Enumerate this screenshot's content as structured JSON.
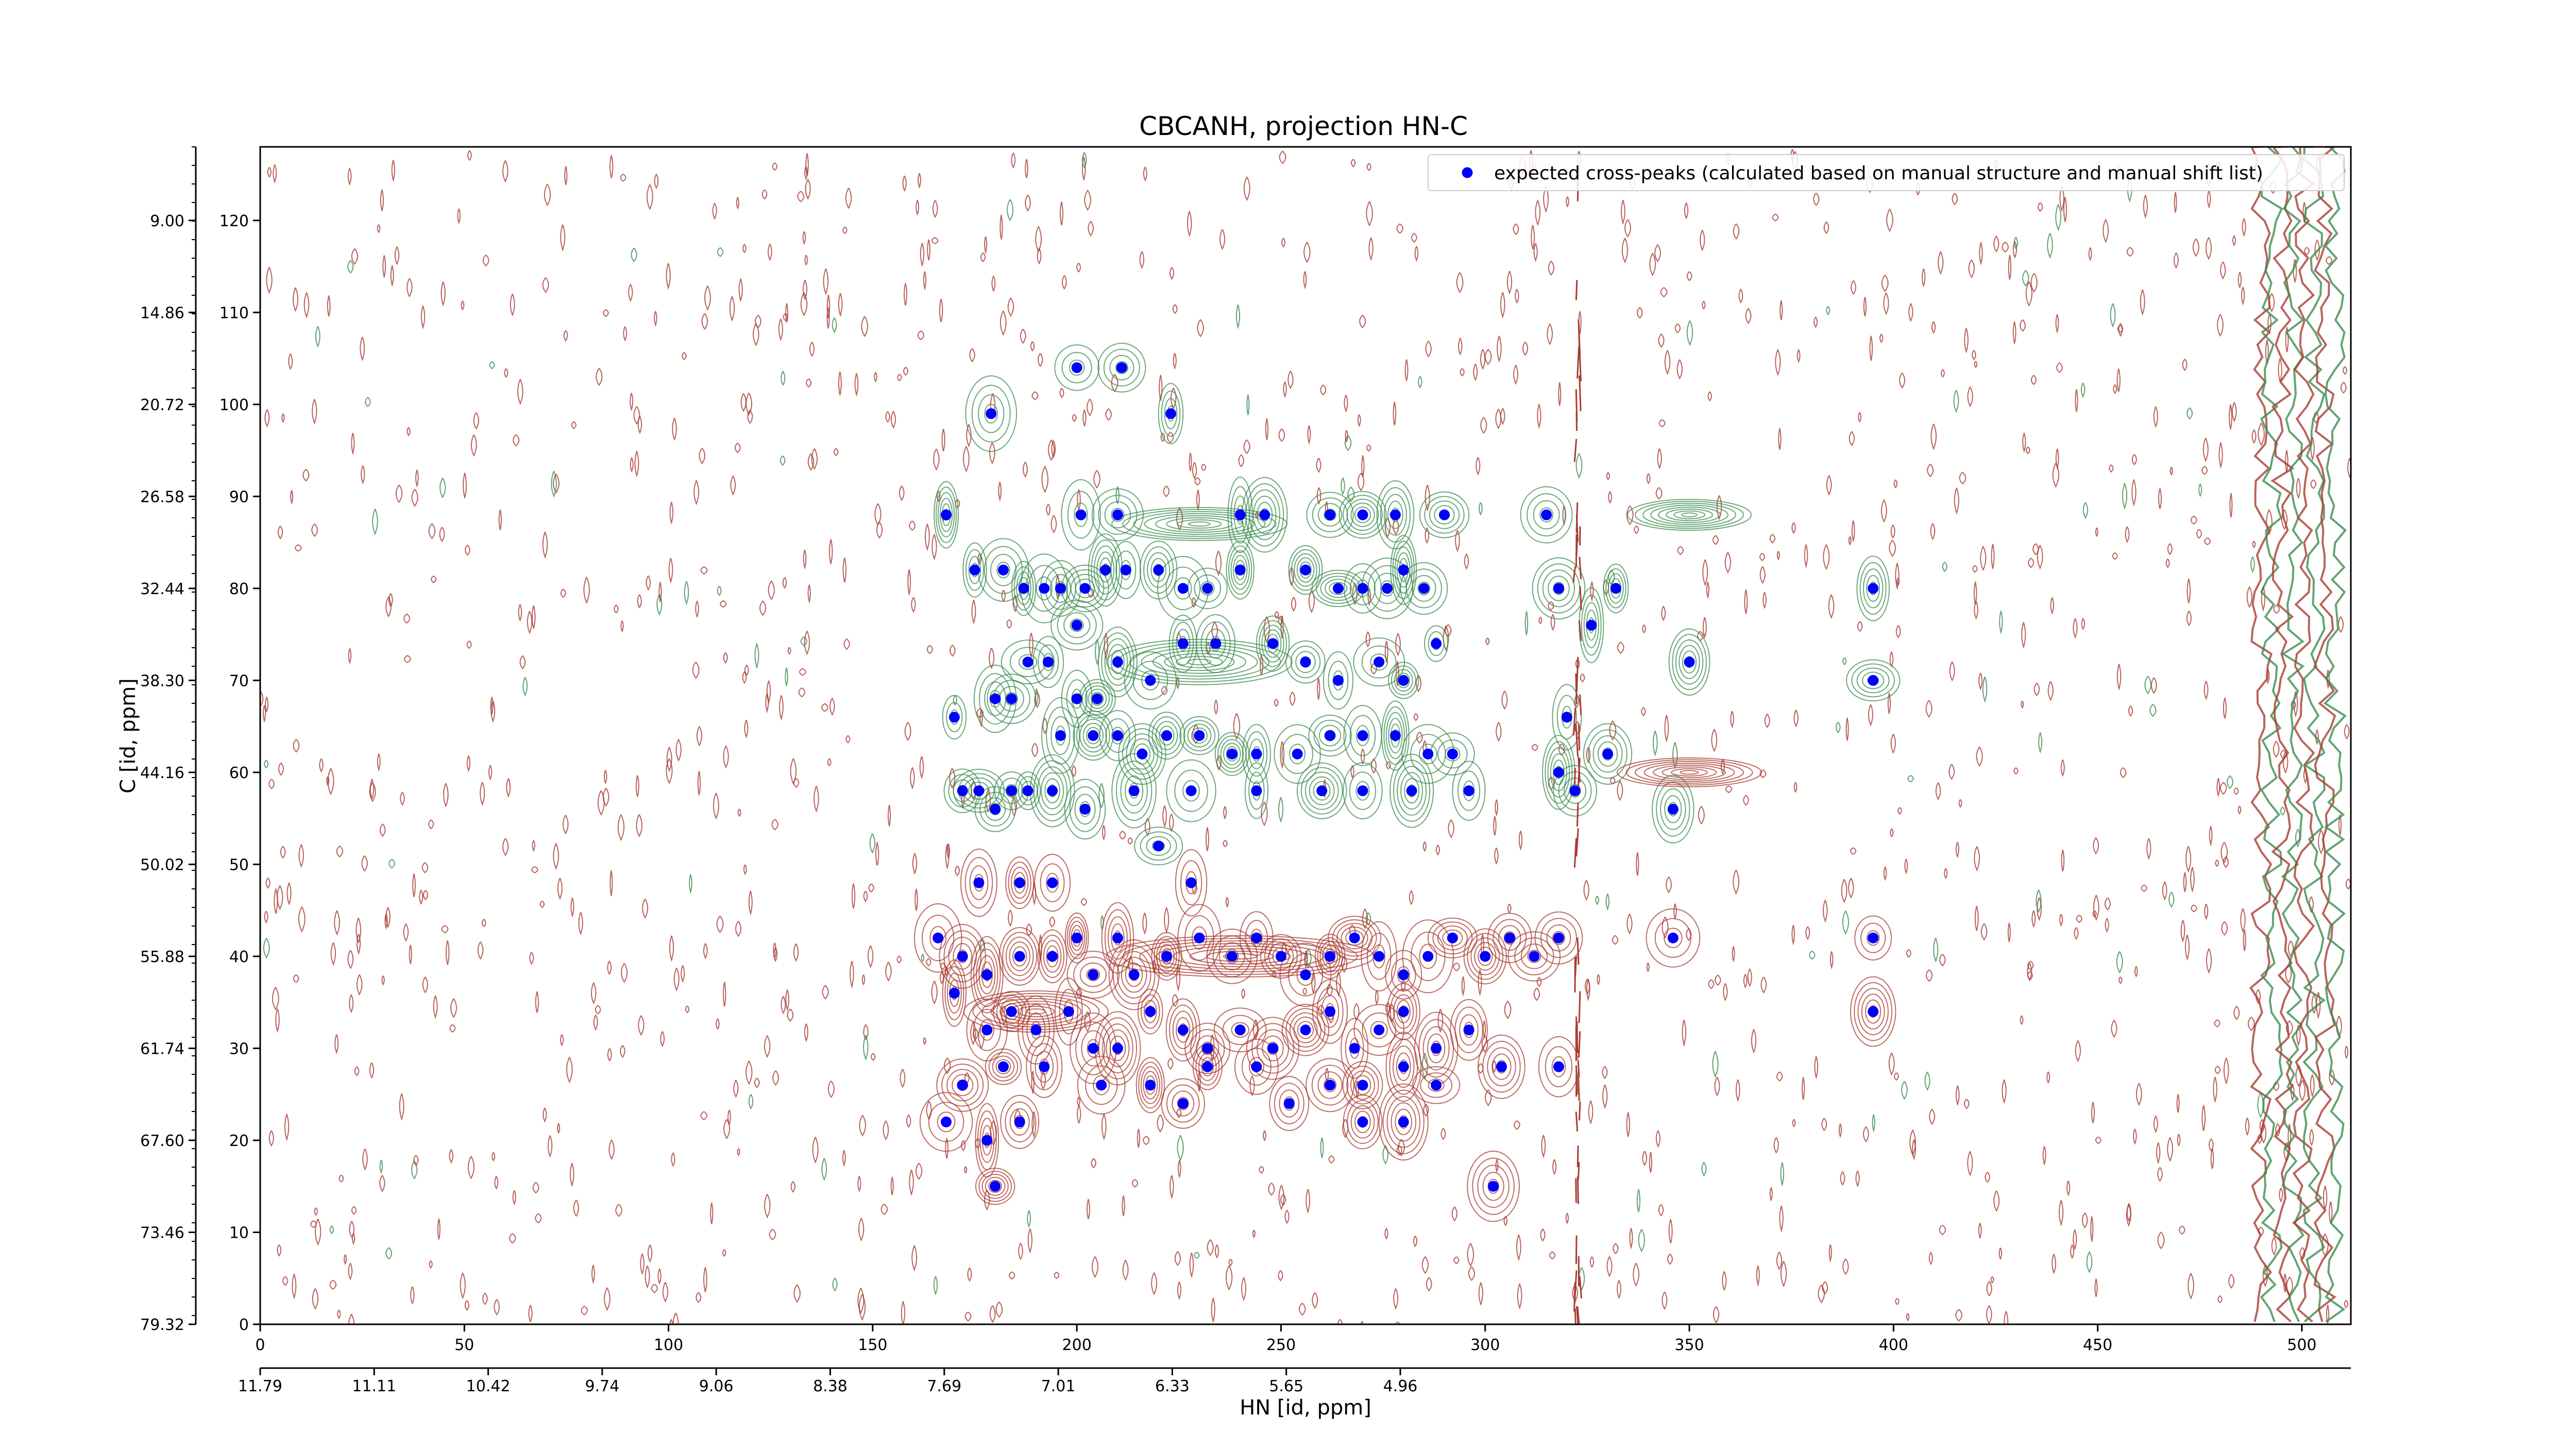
{
  "chart_data": {
    "type": "scatter",
    "title": "CBCANH, projection HN-C",
    "xlabel": "HN [id, ppm]",
    "ylabel": "C [id, ppm]",
    "xlim": [
      0,
      512
    ],
    "ylim": [
      0,
      128
    ],
    "x_ticks": [
      0,
      50,
      100,
      150,
      200,
      250,
      300,
      350,
      400,
      450,
      500
    ],
    "y_ticks": [
      0,
      10,
      20,
      30,
      40,
      50,
      60,
      70,
      80,
      90,
      100,
      110,
      120
    ],
    "secondary_x_ticks": [
      "11.79",
      "11.11",
      "10.42",
      "9.74",
      "9.06",
      "8.38",
      "7.69",
      "7.01",
      "6.33",
      "5.65",
      "4.96"
    ],
    "secondary_y_ticks": [
      "79.32",
      "73.46",
      "67.60",
      "61.74",
      "55.88",
      "50.02",
      "44.16",
      "38.30",
      "32.44",
      "26.58",
      "20.72",
      "14.86",
      "9.00"
    ],
    "legend_position": "top-right",
    "colors": {
      "marker": "#0000ff",
      "positive_contour": "#a83c32",
      "negative_contour": "#3c8c50"
    },
    "series": [
      {
        "name": "expected cross-peaks (calculated based on manual structure and manual shift list)",
        "points": [
          [
            200,
            104
          ],
          [
            211,
            104
          ],
          [
            179,
            99
          ],
          [
            223,
            99
          ],
          [
            168,
            88
          ],
          [
            175,
            82
          ],
          [
            182,
            82
          ],
          [
            187,
            80
          ],
          [
            192,
            80
          ],
          [
            196,
            80
          ],
          [
            202,
            80
          ],
          [
            207,
            82
          ],
          [
            212,
            82
          ],
          [
            220,
            82
          ],
          [
            226,
            80
          ],
          [
            232,
            80
          ],
          [
            240,
            82
          ],
          [
            256,
            82
          ],
          [
            264,
            80
          ],
          [
            270,
            80
          ],
          [
            276,
            80
          ],
          [
            280,
            82
          ],
          [
            285,
            80
          ],
          [
            201,
            88
          ],
          [
            210,
            88
          ],
          [
            240,
            88
          ],
          [
            246,
            88
          ],
          [
            262,
            88
          ],
          [
            270,
            88
          ],
          [
            278,
            88
          ],
          [
            290,
            88
          ],
          [
            170,
            66
          ],
          [
            180,
            68
          ],
          [
            184,
            68
          ],
          [
            188,
            72
          ],
          [
            193,
            72
          ],
          [
            200,
            68
          ],
          [
            205,
            68
          ],
          [
            200,
            76
          ],
          [
            210,
            72
          ],
          [
            218,
            70
          ],
          [
            226,
            74
          ],
          [
            234,
            74
          ],
          [
            248,
            74
          ],
          [
            256,
            72
          ],
          [
            264,
            70
          ],
          [
            274,
            72
          ],
          [
            280,
            70
          ],
          [
            288,
            74
          ],
          [
            196,
            64
          ],
          [
            204,
            64
          ],
          [
            210,
            64
          ],
          [
            216,
            62
          ],
          [
            222,
            64
          ],
          [
            230,
            64
          ],
          [
            238,
            62
          ],
          [
            244,
            62
          ],
          [
            254,
            62
          ],
          [
            262,
            64
          ],
          [
            270,
            64
          ],
          [
            278,
            64
          ],
          [
            286,
            62
          ],
          [
            292,
            62
          ],
          [
            172,
            58
          ],
          [
            176,
            58
          ],
          [
            180,
            56
          ],
          [
            184,
            58
          ],
          [
            188,
            58
          ],
          [
            194,
            58
          ],
          [
            202,
            56
          ],
          [
            214,
            58
          ],
          [
            228,
            58
          ],
          [
            244,
            58
          ],
          [
            260,
            58
          ],
          [
            270,
            58
          ],
          [
            282,
            58
          ],
          [
            296,
            58
          ],
          [
            176,
            48
          ],
          [
            186,
            48
          ],
          [
            194,
            48
          ],
          [
            220,
            52
          ],
          [
            228,
            48
          ],
          [
            166,
            42
          ],
          [
            172,
            40
          ],
          [
            178,
            38
          ],
          [
            186,
            40
          ],
          [
            194,
            40
          ],
          [
            200,
            42
          ],
          [
            204,
            38
          ],
          [
            210,
            42
          ],
          [
            214,
            38
          ],
          [
            222,
            40
          ],
          [
            230,
            42
          ],
          [
            238,
            40
          ],
          [
            244,
            42
          ],
          [
            250,
            40
          ],
          [
            256,
            38
          ],
          [
            262,
            40
          ],
          [
            268,
            42
          ],
          [
            274,
            40
          ],
          [
            280,
            38
          ],
          [
            286,
            40
          ],
          [
            292,
            42
          ],
          [
            300,
            40
          ],
          [
            306,
            42
          ],
          [
            312,
            40
          ],
          [
            318,
            42
          ],
          [
            170,
            36
          ],
          [
            178,
            32
          ],
          [
            184,
            34
          ],
          [
            190,
            32
          ],
          [
            198,
            34
          ],
          [
            204,
            30
          ],
          [
            210,
            30
          ],
          [
            218,
            34
          ],
          [
            226,
            32
          ],
          [
            232,
            30
          ],
          [
            240,
            32
          ],
          [
            248,
            30
          ],
          [
            256,
            32
          ],
          [
            262,
            34
          ],
          [
            268,
            30
          ],
          [
            274,
            32
          ],
          [
            280,
            34
          ],
          [
            288,
            30
          ],
          [
            296,
            32
          ],
          [
            172,
            26
          ],
          [
            182,
            28
          ],
          [
            192,
            28
          ],
          [
            206,
            26
          ],
          [
            218,
            26
          ],
          [
            232,
            28
          ],
          [
            244,
            28
          ],
          [
            262,
            26
          ],
          [
            270,
            26
          ],
          [
            280,
            28
          ],
          [
            288,
            26
          ],
          [
            304,
            28
          ],
          [
            318,
            28
          ],
          [
            168,
            22
          ],
          [
            178,
            20
          ],
          [
            186,
            22
          ],
          [
            226,
            24
          ],
          [
            252,
            24
          ],
          [
            270,
            22
          ],
          [
            280,
            22
          ],
          [
            315,
            88
          ],
          [
            318,
            80
          ],
          [
            326,
            76
          ],
          [
            332,
            80
          ],
          [
            320,
            66
          ],
          [
            330,
            62
          ],
          [
            318,
            60
          ],
          [
            322,
            58
          ],
          [
            350,
            72
          ],
          [
            346,
            56
          ],
          [
            346,
            42
          ],
          [
            395,
            80
          ],
          [
            395,
            70
          ],
          [
            395,
            42
          ],
          [
            395,
            34
          ],
          [
            180,
            15
          ],
          [
            302,
            15
          ]
        ]
      }
    ]
  }
}
